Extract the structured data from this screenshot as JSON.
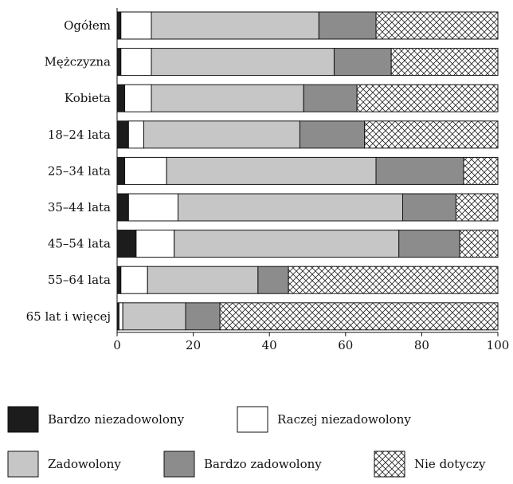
{
  "chart_data": {
    "type": "bar",
    "orientation": "horizontal",
    "stacked": true,
    "categories": [
      "Ogółem",
      "Mężczyzna",
      "Kobieta",
      "18–24 lata",
      "25–34 lata",
      "35–44 lata",
      "45–54 lata",
      "55–64 lata",
      "65 lat i więcej"
    ],
    "series": [
      {
        "name": "Bardzo niezadowolony",
        "fill": "#1c1c1c",
        "pattern": "solid",
        "values": [
          1,
          1,
          2,
          3,
          2,
          3,
          5,
          1,
          0.5
        ]
      },
      {
        "name": "Raczej niezadowolony",
        "fill": "#ffffff",
        "pattern": "solid",
        "values": [
          8,
          8,
          7,
          4,
          11,
          13,
          10,
          7,
          1
        ]
      },
      {
        "name": "Zadowolony",
        "fill": "#c6c6c6",
        "pattern": "solid",
        "values": [
          44,
          48,
          40,
          41,
          55,
          59,
          59,
          29,
          16.5
        ]
      },
      {
        "name": "Bardzo zadowolony",
        "fill": "#8c8c8c",
        "pattern": "solid",
        "values": [
          15,
          15,
          14,
          17,
          23,
          14,
          16,
          8,
          9
        ]
      },
      {
        "name": "Nie dotyczy",
        "fill": "#ffffff",
        "pattern": "crosshatch",
        "values": [
          32,
          28,
          37,
          35,
          9,
          11,
          10,
          55,
          73
        ]
      }
    ],
    "xlim": [
      0,
      100
    ],
    "xticks": [
      0,
      20,
      40,
      60,
      80,
      100
    ],
    "xlabel": "",
    "ylabel": "",
    "title": "",
    "grid": false,
    "legend_placement": "bottom",
    "legend_rows": [
      [
        "Bardzo niezadowolony",
        "Raczej niezadowolony"
      ],
      [
        "Zadowolony",
        "Bardzo zadowolony",
        "Nie dotyczy"
      ]
    ]
  }
}
